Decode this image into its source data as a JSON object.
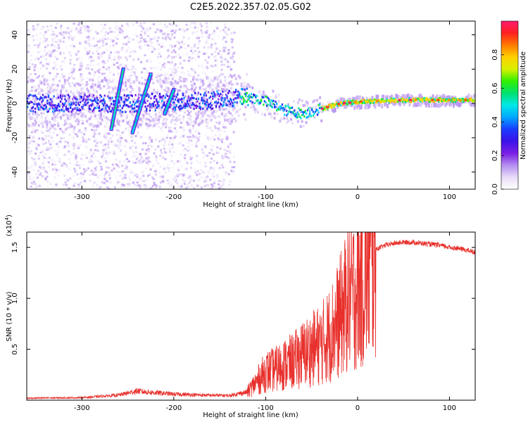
{
  "figure_title": "C2E5.2022.357.02.05.G02",
  "colors": {
    "snr_line": "#e8302c",
    "frame": "#000000",
    "background": "#ffffff",
    "colorbar": [
      "#ffffff",
      "#e8dcf8",
      "#b48cf0",
      "#7a1fe6",
      "#3a12e8",
      "#1a3cff",
      "#00a8ff",
      "#00e8e8",
      "#00e070",
      "#30f000",
      "#d8f000",
      "#ffd000",
      "#ff7a00",
      "#ff2020",
      "#ff1a6e"
    ]
  },
  "chart_data": [
    {
      "type": "heatmap",
      "ylabel": "Frequency (Hz)",
      "xlabel": "Height of straight line (km)",
      "xlim": [
        -360,
        128
      ],
      "ylim": [
        -50,
        48
      ],
      "xticks": [
        -300,
        -200,
        -100,
        0,
        100
      ],
      "yticks": [
        -40,
        -20,
        0,
        20,
        40
      ],
      "colorbar": {
        "label": "Normalized spectral amplitude",
        "range": [
          0.0,
          1.0
        ],
        "ticks": [
          0.0,
          0.2,
          0.4,
          0.6,
          0.8
        ]
      },
      "ridge_segments": [
        {
          "x": [
            -268,
            -255
          ],
          "y": [
            -15,
            20
          ]
        },
        {
          "x": [
            -245,
            -225
          ],
          "y": [
            -17,
            17
          ]
        },
        {
          "x": [
            -210,
            -200
          ],
          "y": [
            -6,
            8
          ]
        }
      ],
      "main_band": {
        "x": [
          -360,
          -250,
          -200,
          -150,
          -120,
          -100,
          -80,
          -60,
          -40,
          -20,
          0,
          50,
          128
        ],
        "y": [
          0,
          0,
          1,
          2,
          4,
          1,
          -4,
          -6,
          -3,
          0,
          1,
          2,
          2
        ]
      }
    },
    {
      "type": "line",
      "ylabel": "SNR (10 * v/v)",
      "y_multiplier": "(x10",
      "y_multiplier_exp": "4",
      "y_multiplier_close": ")",
      "xlabel": "Height of straight line (km)",
      "xlim": [
        -360,
        128
      ],
      "ylim": [
        0,
        16500
      ],
      "xticks": [
        -300,
        -200,
        -100,
        0,
        100
      ],
      "yticks": [
        5000,
        10000,
        15000
      ],
      "ytick_labels": [
        "0.5",
        "1.0",
        "1.5"
      ],
      "series": [
        {
          "x": [
            -360,
            -300,
            -260,
            -240,
            -230,
            -200,
            -170,
            -140,
            -120,
            -110,
            -100,
            -90,
            -80,
            -70,
            -60,
            -50,
            -40,
            -30,
            -20,
            -10,
            0,
            10,
            20,
            30,
            40,
            50,
            60,
            70,
            80,
            90,
            100,
            110,
            120,
            128
          ],
          "y": [
            200,
            250,
            500,
            900,
            800,
            600,
            500,
            450,
            800,
            1800,
            2800,
            3000,
            3500,
            3800,
            4500,
            5000,
            5500,
            6500,
            8000,
            10000,
            11000,
            12500,
            14800,
            15200,
            15400,
            15500,
            15500,
            15400,
            15300,
            15200,
            15000,
            14900,
            14700,
            14500
          ]
        }
      ]
    }
  ]
}
